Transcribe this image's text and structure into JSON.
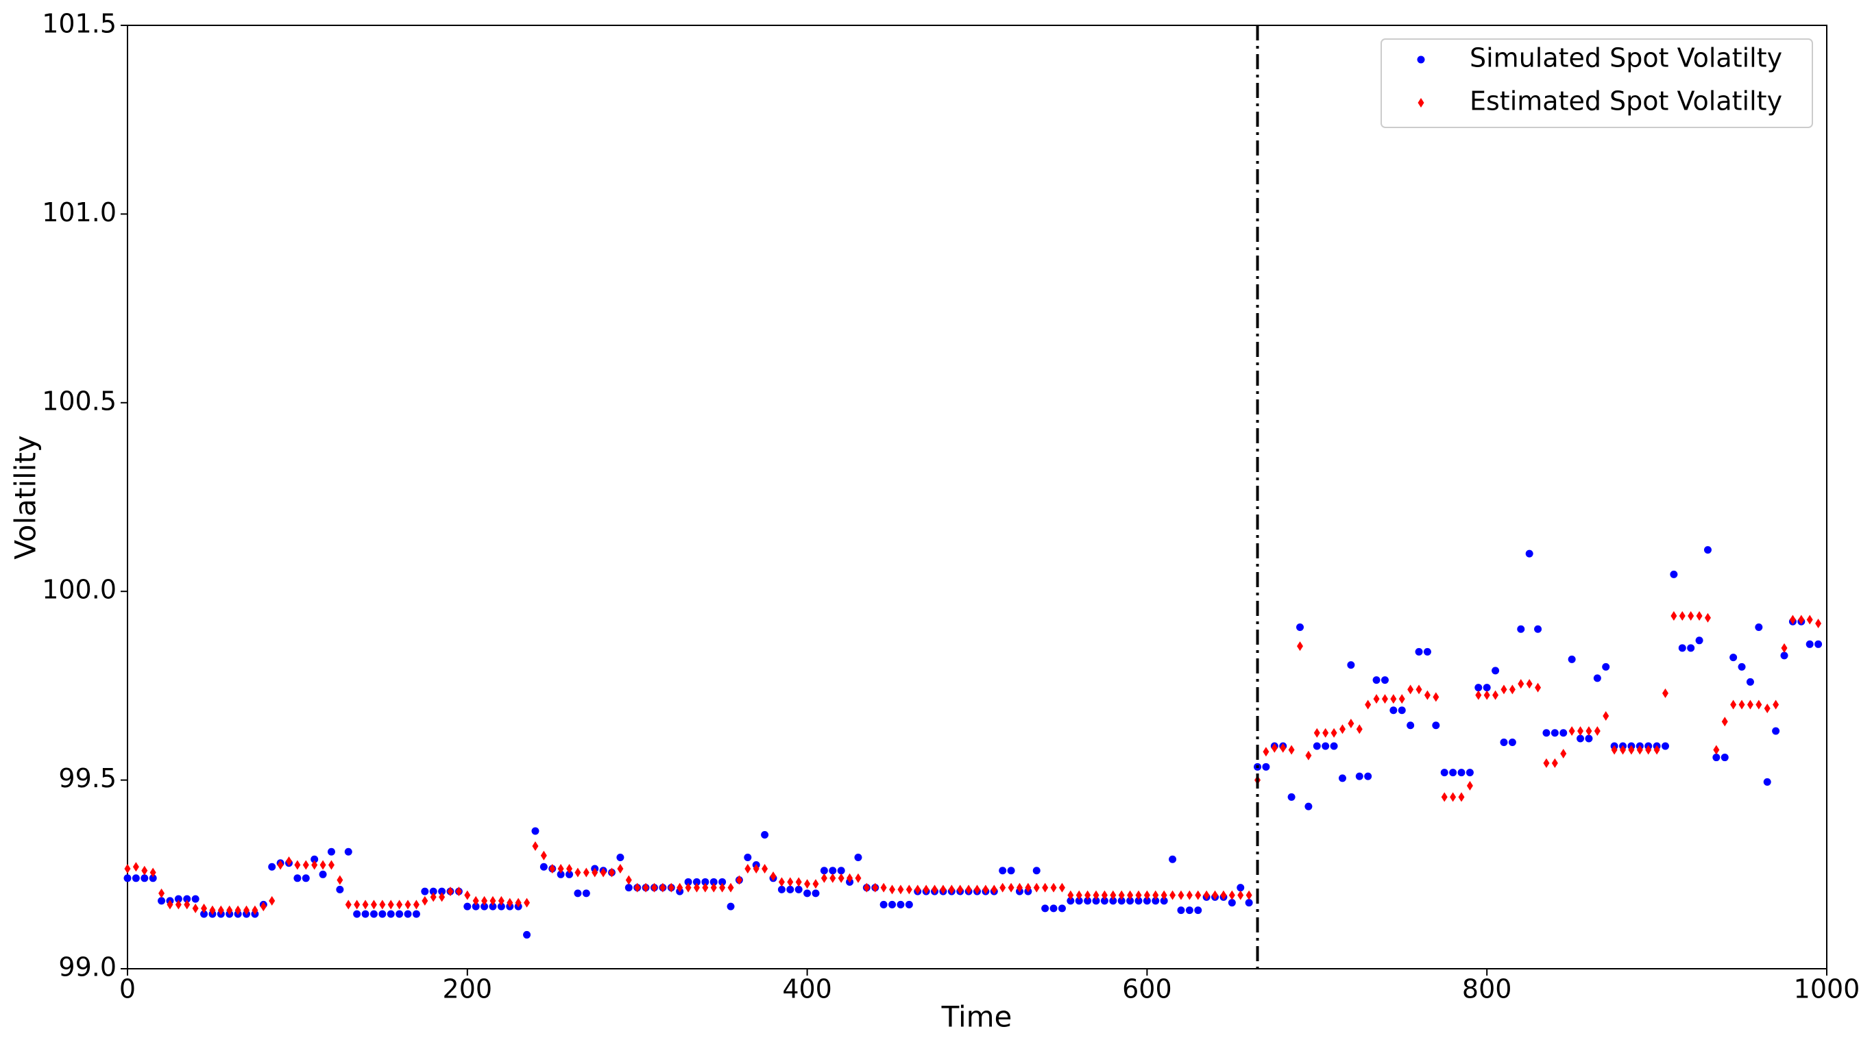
{
  "chart_data": {
    "type": "scatter",
    "xlabel": "Time",
    "ylabel": "Volatility",
    "xlim": [
      0,
      1000
    ],
    "ylim": [
      99.0,
      101.5
    ],
    "xticks": [
      0,
      200,
      400,
      600,
      800,
      1000
    ],
    "yticks": [
      {
        "value": 99.0,
        "label": "99.0"
      },
      99.5,
      {
        "value": 100.0,
        "label": "100.0"
      },
      100.5,
      {
        "value": 101.0,
        "label": "101.0"
      },
      101.5
    ],
    "legend": "upper right",
    "vline": 665,
    "x": [
      0,
      5,
      10,
      15,
      20,
      25,
      30,
      35,
      40,
      45,
      50,
      55,
      60,
      65,
      70,
      75,
      80,
      85,
      90,
      95,
      100,
      105,
      110,
      115,
      120,
      125,
      130,
      135,
      140,
      145,
      150,
      155,
      160,
      165,
      170,
      175,
      180,
      185,
      190,
      195,
      200,
      205,
      210,
      215,
      220,
      225,
      230,
      235,
      240,
      245,
      250,
      255,
      260,
      265,
      270,
      275,
      280,
      285,
      290,
      295,
      300,
      305,
      310,
      315,
      320,
      325,
      330,
      335,
      340,
      345,
      350,
      355,
      360,
      365,
      370,
      375,
      380,
      385,
      390,
      395,
      400,
      405,
      410,
      415,
      420,
      425,
      430,
      435,
      440,
      445,
      450,
      455,
      460,
      465,
      470,
      475,
      480,
      485,
      490,
      495,
      500,
      505,
      510,
      515,
      520,
      525,
      530,
      535,
      540,
      545,
      550,
      555,
      560,
      565,
      570,
      575,
      580,
      585,
      590,
      595,
      600,
      605,
      610,
      615,
      620,
      625,
      630,
      635,
      640,
      645,
      650,
      655,
      660,
      665,
      670,
      675,
      680,
      685,
      690,
      695,
      700,
      705,
      710,
      715,
      720,
      725,
      730,
      735,
      740,
      745,
      750,
      755,
      760,
      765,
      770,
      775,
      780,
      785,
      790,
      795,
      800,
      805,
      810,
      815,
      820,
      825,
      830,
      835,
      840,
      845,
      850,
      855,
      860,
      865,
      870,
      875,
      880,
      885,
      890,
      895,
      900,
      905,
      910,
      915,
      920,
      925,
      930,
      935,
      940,
      945,
      950,
      955,
      960,
      965,
      970,
      975,
      980,
      985,
      990,
      995
    ],
    "series": [
      {
        "name": "Simulated Spot Volatilty",
        "color": "#0000ff",
        "marker": "circle",
        "values": [
          99.24,
          99.24,
          99.24,
          99.24,
          99.18,
          99.18,
          99.185,
          99.185,
          99.185,
          99.145,
          99.145,
          99.145,
          99.145,
          99.145,
          99.145,
          99.145,
          99.17,
          99.27,
          99.28,
          99.28,
          99.24,
          99.24,
          99.29,
          99.25,
          99.31,
          99.21,
          99.31,
          99.145,
          99.145,
          99.145,
          99.145,
          99.145,
          99.145,
          99.145,
          99.145,
          99.205,
          99.205,
          99.205,
          99.205,
          99.205,
          99.165,
          99.165,
          99.165,
          99.165,
          99.165,
          99.165,
          99.165,
          99.09,
          99.365,
          99.27,
          99.265,
          99.25,
          99.25,
          99.2,
          99.2,
          99.265,
          99.26,
          99.255,
          99.295,
          99.215,
          99.215,
          99.215,
          99.215,
          99.215,
          99.215,
          99.205,
          99.23,
          99.23,
          99.23,
          99.23,
          99.23,
          99.165,
          99.235,
          99.295,
          99.275,
          99.355,
          99.24,
          99.21,
          99.21,
          99.21,
          99.2,
          99.2,
          99.26,
          99.26,
          99.26,
          99.23,
          99.295,
          99.215,
          99.215,
          99.17,
          99.17,
          99.17,
          99.17,
          99.205,
          99.205,
          99.205,
          99.205,
          99.205,
          99.205,
          99.205,
          99.205,
          99.205,
          99.205,
          99.26,
          99.26,
          99.205,
          99.205,
          99.26,
          99.16,
          99.16,
          99.16,
          99.18,
          99.18,
          99.18,
          99.18,
          99.18,
          99.18,
          99.18,
          99.18,
          99.18,
          99.18,
          99.18,
          99.18,
          99.29,
          99.155,
          99.155,
          99.155,
          99.19,
          99.19,
          99.19,
          99.175,
          99.215,
          99.175,
          99.535,
          99.535,
          99.59,
          99.59,
          99.455,
          99.905,
          99.43,
          99.59,
          99.59,
          99.59,
          99.505,
          99.805,
          99.51,
          99.51,
          99.765,
          99.765,
          99.685,
          99.685,
          99.645,
          99.84,
          99.84,
          99.645,
          99.52,
          99.52,
          99.52,
          99.52,
          99.745,
          99.745,
          99.79,
          99.6,
          99.6,
          99.9,
          100.1,
          99.9,
          99.625,
          99.625,
          99.625,
          99.82,
          99.61,
          99.61,
          99.77,
          99.8,
          99.59,
          99.59,
          99.59,
          99.59,
          99.59,
          99.59,
          99.59,
          100.045,
          99.85,
          99.85,
          99.87,
          100.11,
          99.56,
          99.56,
          99.825,
          99.8,
          99.76,
          99.905,
          99.495,
          99.63,
          99.83,
          99.92,
          99.92,
          99.86,
          99.86
        ]
      },
      {
        "name": "Estimated Spot Volatilty",
        "color": "#ff0000",
        "marker": "diamond",
        "values": [
          99.265,
          99.27,
          99.26,
          99.255,
          99.2,
          99.17,
          99.17,
          99.17,
          99.16,
          99.16,
          99.155,
          99.155,
          99.155,
          99.155,
          99.155,
          99.155,
          99.165,
          99.18,
          99.275,
          99.285,
          99.275,
          99.275,
          99.275,
          99.275,
          99.275,
          99.235,
          99.17,
          99.17,
          99.17,
          99.17,
          99.17,
          99.17,
          99.17,
          99.17,
          99.17,
          99.18,
          99.19,
          99.19,
          99.205,
          99.205,
          99.195,
          99.18,
          99.18,
          99.18,
          99.18,
          99.175,
          99.175,
          99.175,
          99.325,
          99.3,
          99.265,
          99.265,
          99.265,
          99.255,
          99.255,
          99.255,
          99.255,
          99.255,
          99.265,
          99.235,
          99.215,
          99.215,
          99.215,
          99.215,
          99.215,
          99.215,
          99.215,
          99.215,
          99.215,
          99.215,
          99.215,
          99.215,
          99.235,
          99.265,
          99.265,
          99.265,
          99.245,
          99.23,
          99.23,
          99.23,
          99.225,
          99.225,
          99.24,
          99.24,
          99.24,
          99.24,
          99.24,
          99.215,
          99.215,
          99.215,
          99.21,
          99.21,
          99.21,
          99.21,
          99.21,
          99.21,
          99.21,
          99.21,
          99.21,
          99.21,
          99.21,
          99.21,
          99.21,
          99.215,
          99.215,
          99.215,
          99.215,
          99.215,
          99.215,
          99.215,
          99.215,
          99.195,
          99.195,
          99.195,
          99.195,
          99.195,
          99.195,
          99.195,
          99.195,
          99.195,
          99.195,
          99.195,
          99.195,
          99.195,
          99.195,
          99.195,
          99.195,
          99.195,
          99.195,
          99.195,
          99.195,
          99.195,
          99.195,
          99.5,
          99.575,
          99.585,
          99.585,
          99.58,
          99.855,
          99.565,
          99.625,
          99.625,
          99.625,
          99.635,
          99.65,
          99.635,
          99.7,
          99.715,
          99.715,
          99.715,
          99.715,
          99.74,
          99.74,
          99.725,
          99.72,
          99.455,
          99.455,
          99.455,
          99.485,
          99.725,
          99.725,
          99.725,
          99.74,
          99.74,
          99.755,
          99.755,
          99.745,
          99.545,
          99.545,
          99.57,
          99.63,
          99.63,
          99.63,
          99.63,
          99.67,
          99.58,
          99.58,
          99.58,
          99.58,
          99.58,
          99.58,
          99.73,
          99.935,
          99.935,
          99.935,
          99.935,
          99.93,
          99.58,
          99.655,
          99.7,
          99.7,
          99.7,
          99.7,
          99.69,
          99.7,
          99.85,
          99.925,
          99.925,
          99.925,
          99.915
        ]
      }
    ]
  }
}
